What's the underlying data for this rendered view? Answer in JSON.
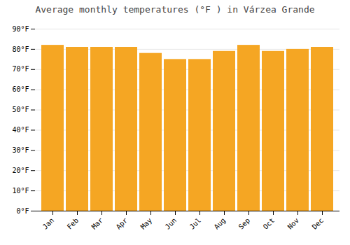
{
  "chart_data": {
    "type": "bar",
    "title": "Average monthly temperatures (°F ) in Várzea Grande",
    "categories": [
      "Jan",
      "Feb",
      "Mar",
      "Apr",
      "May",
      "Jun",
      "Jul",
      "Aug",
      "Sep",
      "Oct",
      "Nov",
      "Dec"
    ],
    "values": [
      82,
      81,
      81,
      81,
      78,
      75,
      75,
      79,
      82,
      79,
      80,
      81
    ],
    "color": "#F5A623",
    "ylim": [
      0,
      90
    ],
    "yticks": [
      {
        "value": 0,
        "label": "0°F"
      },
      {
        "value": 10,
        "label": "10°F"
      },
      {
        "value": 20,
        "label": "20°F"
      },
      {
        "value": 30,
        "label": "30°F"
      },
      {
        "value": 40,
        "label": "40°F"
      },
      {
        "value": 50,
        "label": "50°F"
      },
      {
        "value": 60,
        "label": "60°F"
      },
      {
        "value": 70,
        "label": "70°F"
      },
      {
        "value": 80,
        "label": "80°F"
      },
      {
        "value": 90,
        "label": "90°F"
      }
    ],
    "grid": true
  }
}
